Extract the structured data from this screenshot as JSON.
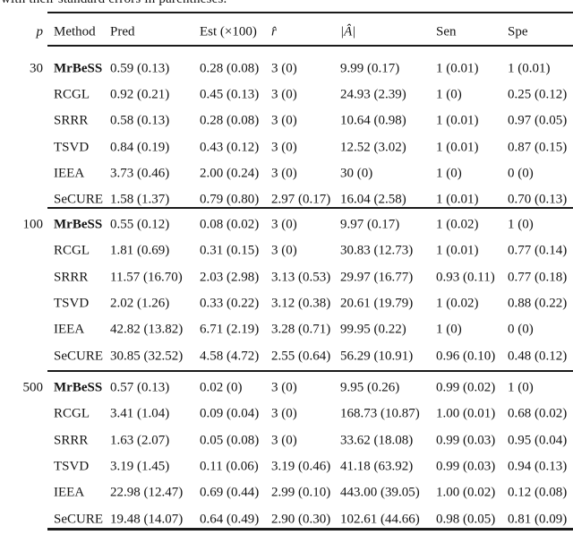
{
  "caption_fragment": "with their standard errors in parentheses.",
  "colors": {
    "background": "#ffffff",
    "text": "#141414",
    "rule": "#1a1a1a"
  },
  "table": {
    "columns": [
      {
        "key": "p",
        "label": "p"
      },
      {
        "key": "method",
        "label": "Method"
      },
      {
        "key": "pred",
        "label": "Pred"
      },
      {
        "key": "est",
        "label": "Est (×100)"
      },
      {
        "key": "rhat",
        "label": "r̂"
      },
      {
        "key": "ahat",
        "label": "|Â|"
      },
      {
        "key": "sen",
        "label": "Sen"
      },
      {
        "key": "spe",
        "label": "Spe"
      }
    ],
    "groups": [
      {
        "p": "30",
        "rows": [
          {
            "method": "MrBeSS",
            "bold": true,
            "pred": "0.59 (0.13)",
            "est": "0.28 (0.08)",
            "rhat": "3 (0)",
            "ahat": "9.99 (0.17)",
            "sen": "1 (0.01)",
            "spe": "1 (0.01)"
          },
          {
            "method": "RCGL",
            "bold": false,
            "pred": "0.92 (0.21)",
            "est": "0.45 (0.13)",
            "rhat": "3 (0)",
            "ahat": "24.93 (2.39)",
            "sen": "1 (0)",
            "spe": "0.25 (0.12)"
          },
          {
            "method": "SRRR",
            "bold": false,
            "pred": "0.58 (0.13)",
            "est": "0.28 (0.08)",
            "rhat": "3 (0)",
            "ahat": "10.64 (0.98)",
            "sen": "1 (0.01)",
            "spe": "0.97 (0.05)"
          },
          {
            "method": "TSVD",
            "bold": false,
            "pred": "0.84 (0.19)",
            "est": "0.43 (0.12)",
            "rhat": "3 (0)",
            "ahat": "12.52 (3.02)",
            "sen": "1 (0.01)",
            "spe": "0.87 (0.15)"
          },
          {
            "method": "IEEA",
            "bold": false,
            "pred": "3.73 (0.46)",
            "est": "2.00 (0.24)",
            "rhat": "3 (0)",
            "ahat": "30 (0)",
            "sen": "1 (0)",
            "spe": "0 (0)"
          },
          {
            "method": "SeCURE",
            "bold": false,
            "pred": "1.58 (1.37)",
            "est": "0.79 (0.80)",
            "rhat": "2.97 (0.17)",
            "ahat": "16.04 (2.58)",
            "sen": "1 (0.01)",
            "spe": "0.70 (0.13)"
          }
        ]
      },
      {
        "p": "100",
        "rows": [
          {
            "method": "MrBeSS",
            "bold": true,
            "pred": "0.55 (0.12)",
            "est": "0.08 (0.02)",
            "rhat": "3 (0)",
            "ahat": "9.97 (0.17)",
            "sen": "1 (0.02)",
            "spe": "1 (0)"
          },
          {
            "method": "RCGL",
            "bold": false,
            "pred": "1.81 (0.69)",
            "est": "0.31 (0.15)",
            "rhat": "3 (0)",
            "ahat": "30.83 (12.73)",
            "sen": "1 (0.01)",
            "spe": "0.77 (0.14)"
          },
          {
            "method": "SRRR",
            "bold": false,
            "pred": "11.57 (16.70)",
            "est": "2.03 (2.98)",
            "rhat": "3.13 (0.53)",
            "ahat": "29.97 (16.77)",
            "sen": "0.93 (0.11)",
            "spe": "0.77 (0.18)"
          },
          {
            "method": "TSVD",
            "bold": false,
            "pred": "2.02 (1.26)",
            "est": "0.33 (0.22)",
            "rhat": "3.12 (0.38)",
            "ahat": "20.61 (19.79)",
            "sen": "1 (0.02)",
            "spe": "0.88 (0.22)"
          },
          {
            "method": "IEEA",
            "bold": false,
            "pred": "42.82 (13.82)",
            "est": "6.71 (2.19)",
            "rhat": "3.28 (0.71)",
            "ahat": "99.95 (0.22)",
            "sen": "1 (0)",
            "spe": "0 (0)"
          },
          {
            "method": "SeCURE",
            "bold": false,
            "pred": "30.85 (32.52)",
            "est": "4.58 (4.72)",
            "rhat": "2.55 (0.64)",
            "ahat": "56.29 (10.91)",
            "sen": "0.96 (0.10)",
            "spe": "0.48 (0.12)"
          }
        ]
      },
      {
        "p": "500",
        "rows": [
          {
            "method": "MrBeSS",
            "bold": true,
            "pred": "0.57 (0.13)",
            "est": "0.02 (0)",
            "rhat": "3 (0)",
            "ahat": "9.95 (0.26)",
            "sen": "0.99 (0.02)",
            "spe": "1 (0)"
          },
          {
            "method": "RCGL",
            "bold": false,
            "pred": "3.41 (1.04)",
            "est": "0.09 (0.04)",
            "rhat": "3 (0)",
            "ahat": "168.73 (10.87)",
            "sen": "1.00 (0.01)",
            "spe": "0.68 (0.02)"
          },
          {
            "method": "SRRR",
            "bold": false,
            "pred": "1.63 (2.07)",
            "est": "0.05 (0.08)",
            "rhat": "3 (0)",
            "ahat": "33.62 (18.08)",
            "sen": "0.99 (0.03)",
            "spe": "0.95 (0.04)"
          },
          {
            "method": "TSVD",
            "bold": false,
            "pred": "3.19 (1.45)",
            "est": "0.11 (0.06)",
            "rhat": "3.19 (0.46)",
            "ahat": "41.18 (63.92)",
            "sen": "0.99 (0.03)",
            "spe": "0.94 (0.13)"
          },
          {
            "method": "IEEA",
            "bold": false,
            "pred": "22.98 (12.47)",
            "est": "0.69 (0.44)",
            "rhat": "2.99 (0.10)",
            "ahat": "443.00 (39.05)",
            "sen": "1.00 (0.02)",
            "spe": "0.12 (0.08)"
          },
          {
            "method": "SeCURE",
            "bold": false,
            "pred": "19.48 (14.07)",
            "est": "0.64 (0.49)",
            "rhat": "2.90 (0.30)",
            "ahat": "102.61 (44.66)",
            "sen": "0.98 (0.05)",
            "spe": "0.81 (0.09)"
          }
        ]
      }
    ]
  }
}
